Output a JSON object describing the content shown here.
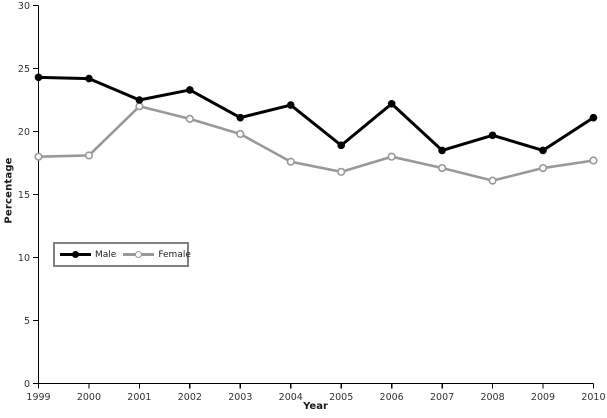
{
  "chart_data": {
    "type": "line",
    "title": "",
    "xlabel": "Year",
    "ylabel": "Percentage",
    "x": [
      1999,
      2000,
      2001,
      2002,
      2003,
      2004,
      2005,
      2006,
      2007,
      2008,
      2009,
      2010
    ],
    "series": [
      {
        "name": "Male",
        "color": "#000000",
        "marker": "filled-circle",
        "values": [
          24.3,
          24.2,
          22.5,
          23.3,
          21.1,
          22.1,
          18.9,
          22.2,
          18.5,
          19.7,
          18.5,
          21.1
        ]
      },
      {
        "name": "Female",
        "color": "#999999",
        "marker": "open-circle",
        "values": [
          18.0,
          18.1,
          22.0,
          21.0,
          19.8,
          17.6,
          16.8,
          18.0,
          17.1,
          16.1,
          17.1,
          17.7
        ]
      }
    ],
    "ylim": [
      0,
      30
    ],
    "yticks": [
      0,
      5,
      10,
      15,
      20,
      25,
      30
    ],
    "grid": false,
    "legend_position": "middle-left",
    "axis_color": "#000000",
    "tick_label_color": "#333333"
  }
}
